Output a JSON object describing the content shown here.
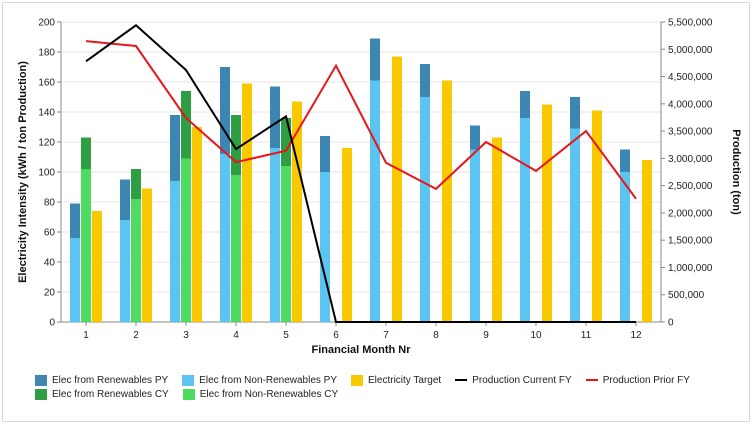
{
  "chart_data": {
    "type": "bar",
    "xlabel": "Financial Month Nr",
    "ylabel": "Electricity Intensity (kWh / ton Production)",
    "y2label": "Production (ton)",
    "categories": [
      "1",
      "2",
      "3",
      "4",
      "5",
      "6",
      "7",
      "8",
      "9",
      "10",
      "11",
      "12"
    ],
    "ylim": [
      0,
      200
    ],
    "y2lim": [
      0,
      5500000
    ],
    "yticks": [
      "0",
      "20",
      "40",
      "60",
      "80",
      "100",
      "120",
      "140",
      "160",
      "180",
      "200"
    ],
    "y2ticks": [
      "0",
      "500,000",
      "1,000,000",
      "1,500,000",
      "2,000,000",
      "2,500,000",
      "3,000,000",
      "3,500,000",
      "4,000,000",
      "4,500,000",
      "5,000,000",
      "5,500,000"
    ],
    "grid": true,
    "legend_position": "bottom",
    "colors": {
      "renewables_py": "#3d86b2",
      "non_renewables_py": "#5bc4f0",
      "target": "#f9c900",
      "renewables_cy": "#2e9e43",
      "non_renewables_cy": "#4edb5f",
      "production_current": "#000000",
      "production_prior": "#e8161b"
    },
    "series": [
      {
        "name": "Elec from Renewables PY",
        "kind": "stack_py",
        "values": [
          23,
          27,
          44,
          58,
          41,
          24,
          28,
          22,
          16,
          18,
          21,
          15
        ]
      },
      {
        "name": "Elec from Non-Renewables PY",
        "kind": "stack_py",
        "values": [
          56,
          68,
          94,
          112,
          116,
          100,
          161,
          150,
          115,
          136,
          129,
          100
        ]
      },
      {
        "name": "Electricity Target",
        "kind": "bar",
        "values": [
          74,
          89,
          130,
          159,
          147,
          116,
          177,
          161,
          123,
          145,
          141,
          108
        ]
      },
      {
        "name": "Production Current FY",
        "kind": "line",
        "axis": "y2",
        "values": [
          4780000,
          5440000,
          4620000,
          3170000,
          3770000,
          0,
          0,
          0,
          0,
          0,
          0,
          0
        ]
      },
      {
        "name": "Production Prior FY",
        "kind": "line",
        "axis": "y2",
        "values": [
          5150000,
          5060000,
          3740000,
          2930000,
          3140000,
          4700000,
          2920000,
          2440000,
          3300000,
          2770000,
          3500000,
          2260000
        ]
      },
      {
        "name": "Elec from Renewables CY",
        "kind": "stack_cy",
        "values": [
          21,
          20,
          45,
          40,
          32,
          null,
          null,
          null,
          null,
          null,
          null,
          null
        ]
      },
      {
        "name": "Elec from Non-Renewables CY",
        "kind": "stack_cy",
        "values": [
          102,
          82,
          109,
          98,
          104,
          null,
          null,
          null,
          null,
          null,
          null,
          null
        ]
      }
    ]
  },
  "legend": {
    "row1": [
      "Elec from Renewables PY",
      "Elec from Non-Renewables PY",
      "Electricity Target",
      "Production Current FY",
      "Production Prior FY"
    ],
    "row2": [
      "Elec from Renewables CY",
      "Elec from Non-Renewables CY"
    ]
  }
}
